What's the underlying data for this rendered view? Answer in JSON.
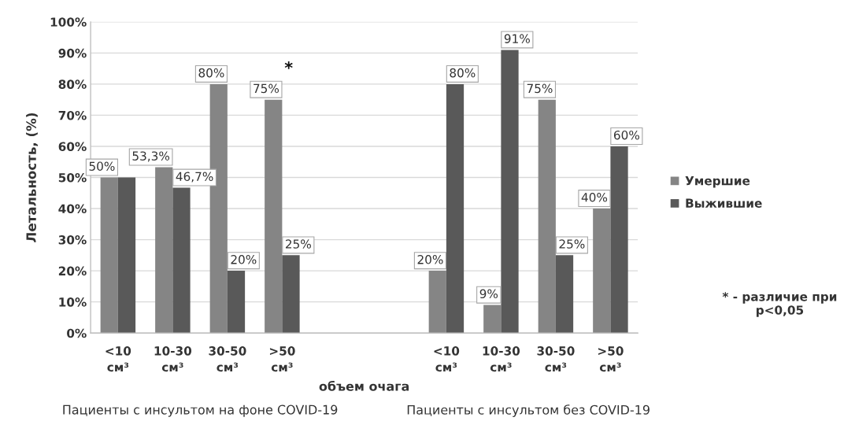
{
  "chart_data": {
    "type": "bar",
    "categories": [
      "<10 см³",
      "10-30 см³",
      "30-50 см³",
      ">50 см³",
      null,
      null,
      "<10 см³",
      "10-30 см³",
      "30-50 см³",
      ">50 см³"
    ],
    "series": [
      {
        "name": "Умершие",
        "color": "#858585",
        "values": [
          50,
          53.3,
          80,
          75,
          null,
          null,
          20,
          9,
          75,
          40
        ],
        "value_labels": [
          "50%",
          "53,3%",
          "80%",
          "75%",
          null,
          null,
          "20%",
          "9%",
          "75%",
          "40%"
        ]
      },
      {
        "name": "Выжившие",
        "color": "#595959",
        "values": [
          50,
          46.7,
          20,
          25,
          null,
          null,
          80,
          91,
          25,
          60
        ],
        "value_labels": [
          null,
          "46,7%",
          "20%",
          "25%",
          null,
          null,
          "80%",
          "91%",
          "25%",
          "60%"
        ]
      }
    ],
    "xlabel": "объем очага",
    "ylabel": "Летальность, (%)",
    "ylim": [
      0,
      100
    ],
    "yticks": [
      {
        "value": 0,
        "label": "0%"
      },
      {
        "value": 10,
        "label": "10%"
      },
      {
        "value": 20,
        "label": "20%"
      },
      {
        "value": 30,
        "label": "30%"
      },
      {
        "value": 40,
        "label": "40%"
      },
      {
        "value": 50,
        "label": "50%"
      },
      {
        "value": 60,
        "label": "60%"
      },
      {
        "value": 70,
        "label": "70%"
      },
      {
        "value": 80,
        "label": "80%"
      },
      {
        "value": 90,
        "label": "90%"
      },
      {
        "value": 100,
        "label": "100%"
      }
    ],
    "grid": "y",
    "legend": "right",
    "annotations": [
      {
        "text": "*",
        "x": ">50 см³",
        "y": 75
      },
      "Пациенты с инсультом на фоне COVID-19",
      "Пациенты с инсультом без COVID-19",
      "* - различие при p<0,05"
    ]
  }
}
